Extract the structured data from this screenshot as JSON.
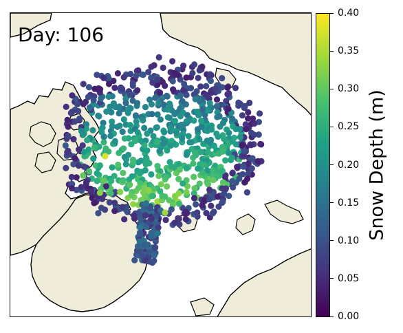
{
  "map": {
    "day_label": "Day: 106",
    "land_color": "#efedda",
    "ocean_color": "#ffffff",
    "coastline_color": "#000000",
    "colormap": "viridis"
  },
  "colorbar": {
    "title": "Snow Depth (m)",
    "min": 0.0,
    "max": 0.4,
    "ticks": [
      "0.00",
      "0.05",
      "0.10",
      "0.15",
      "0.20",
      "0.25",
      "0.30",
      "0.35",
      "0.40"
    ]
  },
  "colormap_stops": [
    "#440154",
    "#46327e",
    "#365c8d",
    "#277f8e",
    "#1fa187",
    "#4ac16d",
    "#a0da39",
    "#fde725"
  ]
}
